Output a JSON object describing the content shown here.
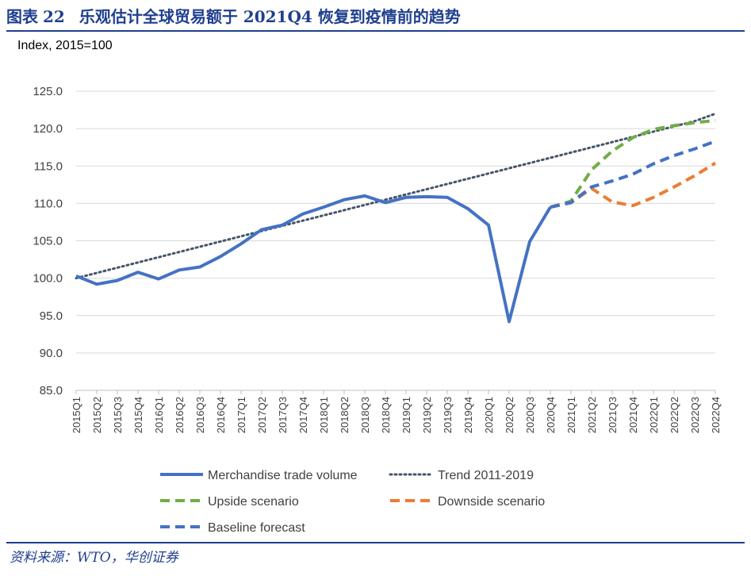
{
  "header": {
    "figure_label": "图表",
    "figure_number": "22",
    "title": "乐观估计全球贸易额于 2021Q4 恢复到疫情前的趋势"
  },
  "footer": {
    "source": "资料来源：WTO，华创证券"
  },
  "chart_data": {
    "type": "line",
    "ylabel": "Index, 2015=100",
    "xlabel": "",
    "ylim": [
      85,
      125
    ],
    "y_ticks": [
      85.0,
      90.0,
      95.0,
      100.0,
      105.0,
      110.0,
      115.0,
      120.0,
      125.0
    ],
    "grid": true,
    "categories": [
      "2015Q1",
      "2015Q2",
      "2015Q3",
      "2015Q4",
      "2016Q1",
      "2016Q2",
      "2016Q3",
      "2016Q4",
      "2017Q1",
      "2017Q2",
      "2017Q3",
      "2017Q4",
      "2018Q1",
      "2018Q2",
      "2018Q3",
      "2018Q4",
      "2019Q1",
      "2019Q2",
      "2019Q3",
      "2019Q4",
      "2020Q1",
      "2020Q2",
      "2020Q3",
      "2020Q4",
      "2021Q1",
      "2021Q2",
      "2021Q3",
      "2021Q4",
      "2022Q1",
      "2022Q2",
      "2022Q3",
      "2022Q4"
    ],
    "series": [
      {
        "name": "Merchandise trade volume",
        "color": "#4472c4",
        "style": "solid",
        "values": [
          100.3,
          99.2,
          99.7,
          100.8,
          99.9,
          101.1,
          101.5,
          102.9,
          104.6,
          106.5,
          107.1,
          108.6,
          109.5,
          110.5,
          111.0,
          110.1,
          110.8,
          110.9,
          110.8,
          109.3,
          107.1,
          94.2,
          104.9,
          109.5,
          null,
          null,
          null,
          null,
          null,
          null,
          null,
          null
        ]
      },
      {
        "name": "Trend 2011-2019",
        "color": "#44546a",
        "style": "dotted",
        "values": [
          100.0,
          100.7,
          101.4,
          102.1,
          102.8,
          103.5,
          104.2,
          104.9,
          105.6,
          106.3,
          107.0,
          107.7,
          108.4,
          109.1,
          109.8,
          110.5,
          111.2,
          111.9,
          112.6,
          113.3,
          114.0,
          114.7,
          115.4,
          116.1,
          116.8,
          117.5,
          118.2,
          118.9,
          119.6,
          120.3,
          121.0,
          122.0
        ]
      },
      {
        "name": "Upside scenario",
        "color": "#70ad47",
        "style": "dashed",
        "values": [
          null,
          null,
          null,
          null,
          null,
          null,
          null,
          null,
          null,
          null,
          null,
          null,
          null,
          null,
          null,
          null,
          null,
          null,
          null,
          null,
          null,
          null,
          null,
          109.5,
          110.3,
          114.5,
          117.0,
          118.8,
          119.9,
          120.4,
          120.8,
          121.1
        ]
      },
      {
        "name": "Downside scenario",
        "color": "#ed7d31",
        "style": "dashed",
        "values": [
          null,
          null,
          null,
          null,
          null,
          null,
          null,
          null,
          null,
          null,
          null,
          null,
          null,
          null,
          null,
          null,
          null,
          null,
          null,
          null,
          null,
          null,
          null,
          109.5,
          110.1,
          112.0,
          110.2,
          109.7,
          110.8,
          112.2,
          113.7,
          115.4
        ]
      },
      {
        "name": "Baseline forecast",
        "color": "#4472c4",
        "style": "dashed",
        "values": [
          null,
          null,
          null,
          null,
          null,
          null,
          null,
          null,
          null,
          null,
          null,
          null,
          null,
          null,
          null,
          null,
          null,
          null,
          null,
          null,
          null,
          null,
          null,
          109.5,
          110.1,
          112.2,
          113.0,
          113.9,
          115.3,
          116.4,
          117.3,
          118.3
        ]
      }
    ],
    "legend": [
      "Merchandise trade volume",
      "Trend 2011-2019",
      "Upside scenario",
      "Downside scenario",
      "Baseline forecast"
    ],
    "legend_position": "bottom"
  }
}
